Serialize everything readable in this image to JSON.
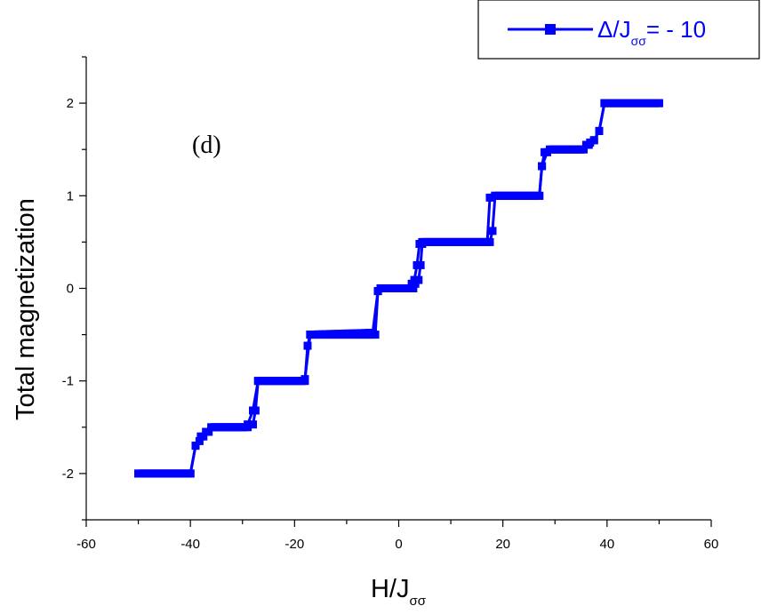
{
  "chart_data": {
    "type": "line",
    "title": "",
    "panel_label": "(d)",
    "xlabel": {
      "main": "H/J",
      "sub": "σσ"
    },
    "ylabel": "Total magnetization",
    "xlim": [
      -60,
      60
    ],
    "ylim": [
      -2.5,
      2.5
    ],
    "x_ticks": [
      -60,
      -40,
      -20,
      0,
      20,
      40,
      60
    ],
    "x_tick_labels": [
      "-60",
      "-40",
      "-20",
      "0",
      "20",
      "40",
      "60"
    ],
    "y_ticks": [
      -2,
      -1,
      0,
      1,
      2
    ],
    "y_tick_labels": [
      "-2",
      "-1",
      "0",
      "1",
      "2"
    ],
    "grid": false,
    "legend_position": "top-right",
    "series": [
      {
        "name_parts": {
          "prefix": "Δ/J",
          "sub": "σσ",
          "suffix": "= - 10"
        },
        "color": "#0000ff",
        "marker": "square",
        "up_sweep": [
          [
            -50,
            -2
          ],
          [
            -40,
            -2
          ],
          [
            -39,
            -1.7
          ],
          [
            -38,
            -1.6
          ],
          [
            -37,
            -1.55
          ],
          [
            -36,
            -1.5
          ],
          [
            -29,
            -1.5
          ],
          [
            -28,
            -1.47
          ],
          [
            -27.5,
            -1.32
          ],
          [
            -27,
            -1.0
          ],
          [
            -18,
            -1.0
          ],
          [
            -17.5,
            -0.62
          ],
          [
            -17,
            -0.5
          ],
          [
            -4.5,
            -0.5
          ],
          [
            -4,
            -0.03
          ],
          [
            -3.5,
            0
          ],
          [
            2.8,
            0
          ],
          [
            3.2,
            0.05
          ],
          [
            3.8,
            0.09
          ],
          [
            4.2,
            0.25
          ],
          [
            4.5,
            0.48
          ],
          [
            5,
            0.5
          ],
          [
            17.5,
            0.5
          ],
          [
            18,
            0.62
          ],
          [
            18.5,
            1.0
          ],
          [
            27,
            1.0
          ],
          [
            27.5,
            1.32
          ],
          [
            28.5,
            1.47
          ],
          [
            29.5,
            1.5
          ],
          [
            35.5,
            1.5
          ],
          [
            36.5,
            1.55
          ],
          [
            37.5,
            1.6
          ],
          [
            38.5,
            1.7
          ],
          [
            39.5,
            2.0
          ],
          [
            50,
            2.0
          ]
        ],
        "down_sweep": [
          [
            50,
            2.0
          ],
          [
            39.5,
            2.0
          ],
          [
            38.5,
            1.7
          ],
          [
            37.5,
            1.6
          ],
          [
            36,
            1.55
          ],
          [
            35,
            1.5
          ],
          [
            29,
            1.5
          ],
          [
            28,
            1.47
          ],
          [
            27.5,
            1.32
          ],
          [
            27,
            1.0
          ],
          [
            18.5,
            1.0
          ],
          [
            17.5,
            0.98
          ],
          [
            17,
            0.5
          ],
          [
            4.5,
            0.5
          ],
          [
            4,
            0.48
          ],
          [
            3.5,
            0.25
          ],
          [
            3,
            0.09
          ],
          [
            2.5,
            0.05
          ],
          [
            2,
            0
          ],
          [
            -3,
            0
          ],
          [
            -4,
            -0.03
          ],
          [
            -5,
            -0.48
          ],
          [
            -17,
            -0.5
          ],
          [
            -18,
            -0.98
          ],
          [
            -18.5,
            -1.0
          ],
          [
            -27,
            -1.0
          ],
          [
            -28,
            -1.32
          ],
          [
            -29,
            -1.47
          ],
          [
            -30,
            -1.5
          ],
          [
            -35.5,
            -1.5
          ],
          [
            -36.5,
            -1.55
          ],
          [
            -37.5,
            -1.6
          ],
          [
            -39,
            -1.7
          ],
          [
            -40,
            -2.0
          ],
          [
            -50,
            -2.0
          ]
        ]
      }
    ]
  }
}
